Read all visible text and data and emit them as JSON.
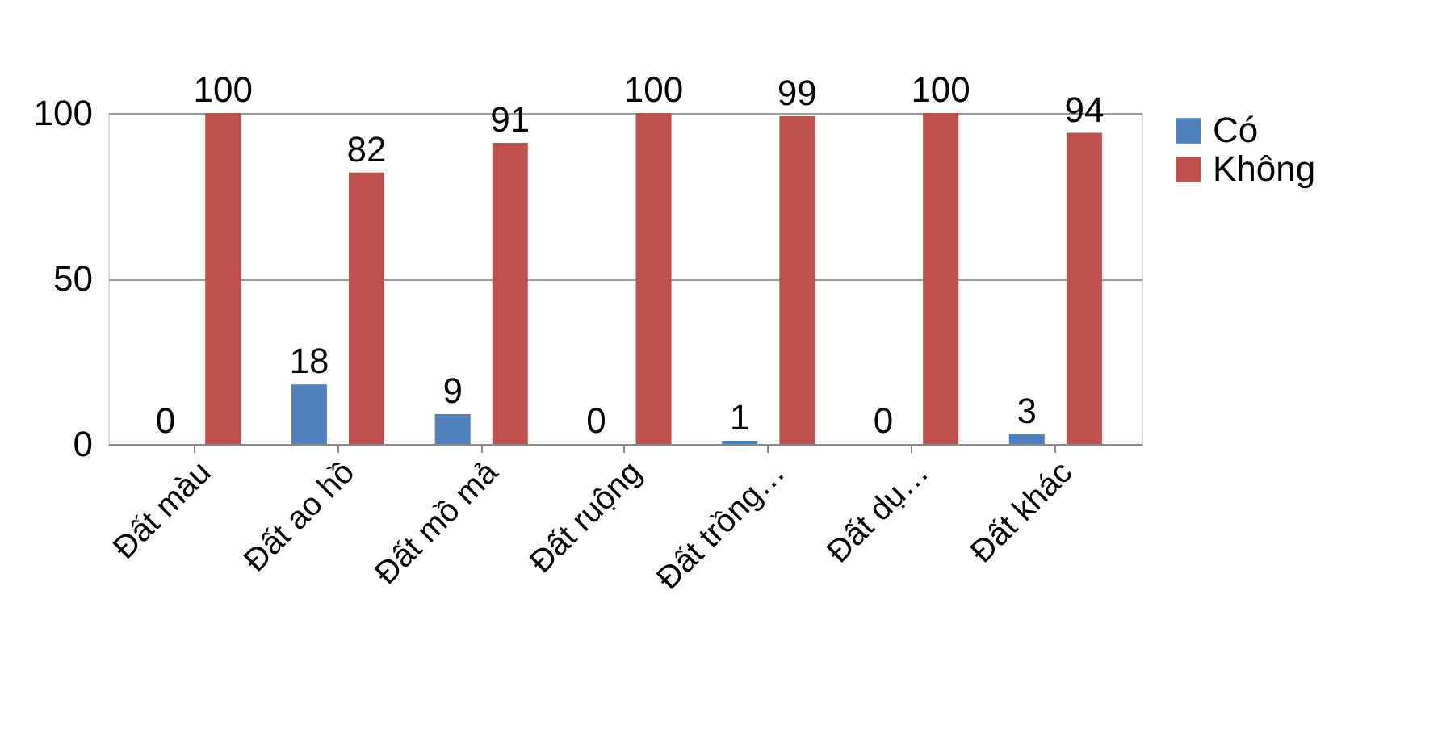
{
  "chart_data": {
    "type": "bar",
    "categories": [
      "Đất màu",
      "Đất ao hồ",
      "Đất mồ mả",
      "Đất ruộng",
      "Đất trồng…",
      "Đất dụ…",
      "Đất khác"
    ],
    "series": [
      {
        "name": "Có",
        "color": "#4f81bd",
        "values": [
          0,
          18,
          9,
          0,
          1,
          0,
          3
        ]
      },
      {
        "name": "Không",
        "color": "#c0504d",
        "values": [
          100,
          82,
          91,
          100,
          99,
          100,
          94
        ]
      }
    ],
    "ylim": [
      0,
      100
    ],
    "yticks": [
      0,
      50,
      100
    ],
    "grid": "y",
    "legend": "right",
    "data_labels": true
  }
}
